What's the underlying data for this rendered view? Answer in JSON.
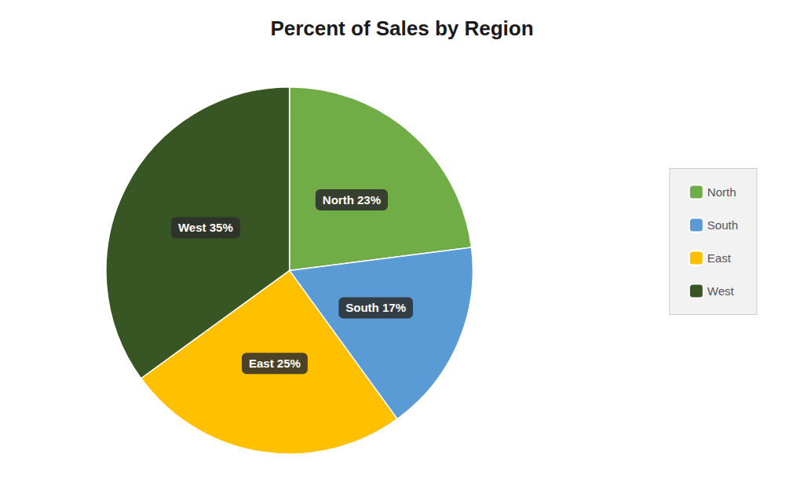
{
  "chart_data": {
    "type": "pie",
    "title": "Percent of Sales by Region",
    "categories": [
      "North",
      "South",
      "East",
      "West"
    ],
    "values": [
      23,
      17,
      25,
      35
    ],
    "value_labels": [
      "North 23%",
      "South 17%",
      "East 25%",
      "West 35%"
    ],
    "colors": [
      "#70AD47",
      "#5B9BD5",
      "#FFC000",
      "#375623"
    ],
    "legend": "right",
    "data_labels": true
  }
}
